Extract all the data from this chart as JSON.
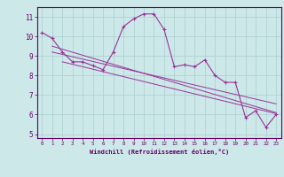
{
  "xlabel": "Windchill (Refroidissement éolien,°C)",
  "x": [
    0,
    1,
    2,
    3,
    4,
    5,
    6,
    7,
    8,
    9,
    10,
    11,
    12,
    13,
    14,
    15,
    16,
    17,
    18,
    19,
    20,
    21,
    22,
    23
  ],
  "y_main": [
    10.2,
    9.9,
    9.2,
    8.7,
    8.7,
    8.5,
    8.3,
    9.2,
    10.5,
    10.9,
    11.15,
    11.15,
    10.35,
    8.45,
    8.55,
    8.45,
    8.8,
    8.0,
    7.65,
    7.65,
    5.85,
    6.2,
    5.35,
    6.0
  ],
  "regression_lines": [
    {
      "x_start": 1,
      "y_start": 9.5,
      "x_end": 23,
      "y_end": 6.1
    },
    {
      "x_start": 1,
      "y_start": 9.2,
      "x_end": 23,
      "y_end": 6.55
    },
    {
      "x_start": 2,
      "y_start": 8.7,
      "x_end": 23,
      "y_end": 6.05
    }
  ],
  "line_color": "#993399",
  "bg_color": "#cce8e8",
  "grid_color": "#aacfcf",
  "text_color": "#660066",
  "spine_color": "#660066",
  "ylim": [
    4.8,
    11.5
  ],
  "xlim": [
    -0.5,
    23.5
  ],
  "yticks": [
    5,
    6,
    7,
    8,
    9,
    10,
    11
  ],
  "xticks": [
    0,
    1,
    2,
    3,
    4,
    5,
    6,
    7,
    8,
    9,
    10,
    11,
    12,
    13,
    14,
    15,
    16,
    17,
    18,
    19,
    20,
    21,
    22,
    23
  ],
  "xlabel_fontsize": 5.0,
  "xtick_fontsize": 4.2,
  "ytick_fontsize": 5.5
}
